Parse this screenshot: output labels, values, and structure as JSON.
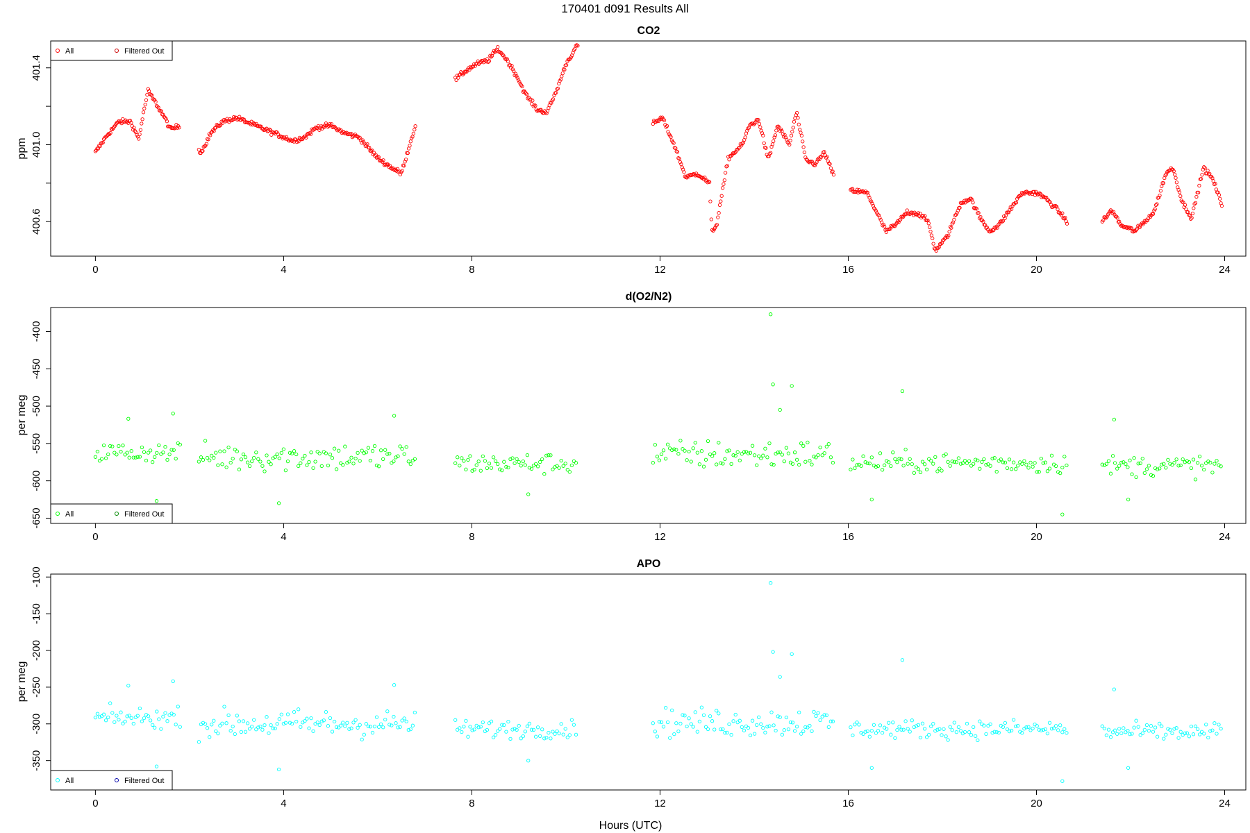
{
  "figure": {
    "title": "170401    d091    Results All",
    "xlabel": "Hours (UTC)"
  },
  "colors": {
    "co2": "#ff0000",
    "o2n2": "#00ff00",
    "apo": "#00ffff",
    "filtered_co2": "#cc0000",
    "filtered_o2n2": "#008800",
    "filtered_apo": "#0000aa"
  },
  "chart_data": [
    {
      "type": "scatter",
      "title": "CO2",
      "xlabel": "",
      "ylabel": "ppm",
      "xlim": [
        -0.95,
        24.45
      ],
      "ylim": [
        400.42,
        401.54
      ],
      "xticks": [
        "0",
        "4",
        "8",
        "12",
        "16",
        "20",
        "24"
      ],
      "yticks": [
        "400.6",
        "401.0",
        "401.4"
      ],
      "legend": {
        "position": "top-left",
        "entries": [
          "All",
          "Filtered Out"
        ]
      },
      "marker": "open-circle",
      "series": [
        {
          "name": "All",
          "x_hours": [
            0.0,
            0.25,
            0.5,
            0.75,
            0.92,
            1.05,
            1.12,
            1.25,
            1.45,
            1.6,
            1.8,
            2.25,
            2.45,
            2.7,
            3.0,
            3.3,
            3.6,
            3.9,
            4.2,
            4.45,
            4.7,
            5.0,
            5.3,
            5.6,
            6.0,
            6.3,
            6.5,
            6.8,
            7.65,
            7.9,
            8.1,
            8.35,
            8.55,
            8.75,
            8.95,
            9.15,
            9.4,
            9.6,
            9.8,
            10.0,
            10.25,
            11.85,
            12.05,
            12.3,
            12.55,
            12.8,
            13.05,
            13.1,
            13.2,
            13.45,
            13.75,
            13.9,
            14.1,
            14.3,
            14.5,
            14.75,
            14.9,
            15.1,
            15.3,
            15.5,
            15.7,
            16.1,
            16.4,
            16.6,
            16.8,
            17.0,
            17.25,
            17.5,
            17.7,
            17.85,
            18.1,
            18.4,
            18.6,
            18.8,
            19.0,
            19.2,
            19.4,
            19.7,
            20.0,
            20.2,
            20.45,
            20.65,
            21.4,
            21.6,
            21.8,
            22.1,
            22.3,
            22.5,
            22.75,
            22.9,
            23.1,
            23.3,
            23.55,
            23.75,
            23.95
          ],
          "y_ppm": [
            400.96,
            401.05,
            401.12,
            401.12,
            401.03,
            401.2,
            401.28,
            401.23,
            401.15,
            401.08,
            401.1,
            400.96,
            401.06,
            401.12,
            401.14,
            401.11,
            401.08,
            401.05,
            401.02,
            401.04,
            401.09,
            401.1,
            401.06,
            401.04,
            400.93,
            400.88,
            400.85,
            401.1,
            401.34,
            401.39,
            401.42,
            401.44,
            401.5,
            401.44,
            401.36,
            401.26,
            401.18,
            401.17,
            401.28,
            401.42,
            401.52,
            401.11,
            401.14,
            401.0,
            400.83,
            400.85,
            400.8,
            400.55,
            400.58,
            400.93,
            401.0,
            401.1,
            401.13,
            400.92,
            401.1,
            401.0,
            401.17,
            400.92,
            400.9,
            400.96,
            400.83,
            400.76,
            400.75,
            400.65,
            400.55,
            400.58,
            400.65,
            400.64,
            400.6,
            400.45,
            400.52,
            400.7,
            400.72,
            400.62,
            400.55,
            400.58,
            400.65,
            400.75,
            400.75,
            400.72,
            400.66,
            400.6,
            400.6,
            400.66,
            400.58,
            400.55,
            400.6,
            400.65,
            400.85,
            400.88,
            400.7,
            400.62,
            400.88,
            400.82,
            400.68
          ]
        },
        {
          "name": "Filtered Out",
          "x_hours": [],
          "y_ppm": []
        }
      ]
    },
    {
      "type": "scatter",
      "title": "d(O2/N2)",
      "xlabel": "",
      "ylabel": "per meg",
      "xlim": [
        -0.95,
        24.45
      ],
      "ylim": [
        -657,
        -368
      ],
      "xticks": [
        "0",
        "4",
        "8",
        "12",
        "16",
        "20",
        "24"
      ],
      "yticks": [
        "-650",
        "-600",
        "-550",
        "-500",
        "-450",
        "-400"
      ],
      "legend": {
        "position": "bottom-left",
        "entries": [
          "All",
          "Filtered Out"
        ]
      },
      "marker": "open-circle",
      "segments_hours": [
        [
          0.0,
          1.8
        ],
        [
          2.2,
          6.8
        ],
        [
          7.65,
          10.25
        ],
        [
          11.85,
          15.7
        ],
        [
          16.05,
          20.65
        ],
        [
          21.4,
          23.95
        ]
      ],
      "series_center_per_meg": [
        -562,
        -568,
        -577,
        -565,
        -576,
        -580
      ],
      "series_spread_per_meg": [
        10,
        14,
        10,
        14,
        10,
        10
      ],
      "outliers": [
        {
          "x": 0.7,
          "y": -517
        },
        {
          "x": 1.3,
          "y": -627
        },
        {
          "x": 1.65,
          "y": -510
        },
        {
          "x": 3.9,
          "y": -630
        },
        {
          "x": 6.35,
          "y": -513
        },
        {
          "x": 9.2,
          "y": -618
        },
        {
          "x": 14.35,
          "y": -377
        },
        {
          "x": 14.4,
          "y": -471
        },
        {
          "x": 14.55,
          "y": -505
        },
        {
          "x": 14.8,
          "y": -473
        },
        {
          "x": 17.15,
          "y": -480
        },
        {
          "x": 20.55,
          "y": -645
        },
        {
          "x": 21.65,
          "y": -518
        },
        {
          "x": 21.95,
          "y": -625
        },
        {
          "x": 16.5,
          "y": -625
        }
      ]
    },
    {
      "type": "scatter",
      "title": "APO",
      "xlabel": "Hours (UTC)",
      "ylabel": "per meg",
      "xlim": [
        -0.95,
        24.45
      ],
      "ylim": [
        -390,
        -96
      ],
      "xticks": [
        "0",
        "4",
        "8",
        "12",
        "16",
        "20",
        "24"
      ],
      "yticks": [
        "-350",
        "-300",
        "-250",
        "-200",
        "-150",
        "-100"
      ],
      "legend": {
        "position": "bottom-left",
        "entries": [
          "All",
          "Filtered Out"
        ]
      },
      "marker": "open-circle",
      "segments_hours": [
        [
          0.0,
          1.8
        ],
        [
          2.2,
          6.8
        ],
        [
          7.65,
          10.25
        ],
        [
          11.85,
          15.7
        ],
        [
          16.05,
          20.65
        ],
        [
          21.4,
          23.95
        ]
      ],
      "series_center_per_meg": [
        -292,
        -300,
        -307,
        -298,
        -307,
        -311
      ],
      "series_spread_per_meg": [
        10,
        14,
        9,
        14,
        9,
        9
      ],
      "outliers": [
        {
          "x": 0.7,
          "y": -248
        },
        {
          "x": 1.3,
          "y": -358
        },
        {
          "x": 1.65,
          "y": -242
        },
        {
          "x": 3.9,
          "y": -362
        },
        {
          "x": 6.35,
          "y": -247
        },
        {
          "x": 9.2,
          "y": -350
        },
        {
          "x": 14.35,
          "y": -108
        },
        {
          "x": 14.4,
          "y": -202
        },
        {
          "x": 14.55,
          "y": -236
        },
        {
          "x": 14.8,
          "y": -205
        },
        {
          "x": 17.15,
          "y": -213
        },
        {
          "x": 20.55,
          "y": -378
        },
        {
          "x": 21.65,
          "y": -253
        },
        {
          "x": 21.95,
          "y": -360
        },
        {
          "x": 16.5,
          "y": -360
        }
      ]
    }
  ]
}
